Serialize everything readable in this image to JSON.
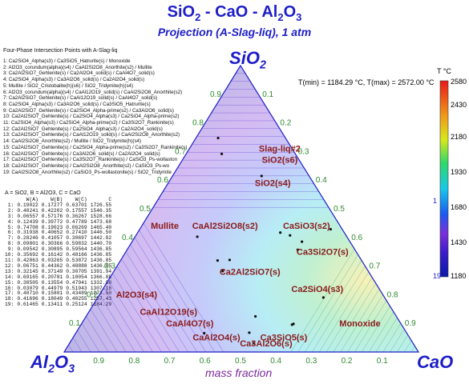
{
  "header": {
    "title": "SiO2 - CaO - Al2O3",
    "subtitle": "Projection (A-Slag-liq), 1 atm"
  },
  "corners": {
    "top": "SiO2",
    "left": "Al2O3",
    "right": "CaO"
  },
  "temperature_range": "T(min) = 1184.29 °C, T(max) = 2572.00 °C",
  "colorbar": {
    "title": "T °C",
    "ticks": [
      "2580",
      "2430",
      "2180",
      "1930",
      "1680",
      "1430",
      "1180"
    ],
    "marks": [
      "1",
      "19"
    ]
  },
  "xlabel": "mass fraction",
  "points_panel": {
    "title": "Four-Phase Intersection Points with A-Slag-liq",
    "items": [
      "1:  Ca2SiO4_Alpha(s3) / Ca3SiO5_Hatrurite(s) / Monoxide",
      "2:  Al2O3_corundum(alpha)(s4) / CaAl2Si2O8_Anorthite(s2) / Mullite",
      "3:  Ca2Al2SiO7_Gehlenite(s) / Ca2Al2O4_solid(s) / CaAl4O7_solid(s)",
      "4:  Ca2SiO4_Alpha(s3) / Ca3Al2O6_solid(s) / Ca2Al2O4_solid(s)",
      "5:  Mullite / SiO2_Cristobalite(h)(s6) / SiO2_Tridymite(h)(s4)",
      "6:  Al2O3_corundum(alpha)(s4) / CaAl12O19_solid(s) / CaAl2Si2O8_Anorthite(s2)",
      "7:  Ca2Al2SiO7_Gehlenite(s) / CaAl12O19_solid(s) / CaAl4O7_solid(s)",
      "8:  Ca2SiO4_Alpha(s3) / Ca3Al2O6_solid(s) / Ca3SiO5_Hatrurite(s)",
      "9:  Ca2Al2SiO7_Gehlenite(s) / Ca2SiO4_Alpha-prime(s2) / Ca3Al2O6_solid(s)",
      "10: Ca2Al2SiO7_Gehlenite(s) / Ca2SiO4_Alpha(s3) / Ca2SiO4_Alpha-prime(s2)",
      "11: Ca2SiO4_Alpha(s3) / Ca2SiO4_Alpha-prime(s2) / Ca3Si2O7_Rankinite(s)",
      "12: Ca2Al2SiO7_Gehlenite(s) / Ca2SiO4_Alpha(s3) / Ca2Al2O4_solid(s)",
      "13: Ca2Al2SiO7_Gehlenite(s) / CaAl12O19_solid(s) / CaAl2Si2O8_Anorthite(s2)",
      "14: CaAl2Si2O8_Anorthite(s2) / Mullite / SiO2_Tridymite(h)(s4)",
      "15: Ca2Al2SiO7_Gehlenite(s) / Ca2SiO4_Alpha-prime(s2) / Ca3Si2O7_Rankinite(s)",
      "16: Ca2Al2SiO7_Gehlenite(s) / Ca3Al2O6_solid(s) / Ca2Al2O4_solid(s)",
      "17: Ca2Al2SiO7_Gehlenite(s) / Ca3Si2O7_Rankinite(s) / CaSiO3_Ps-wollaston",
      "18: Ca2Al2SiO7_Gehlenite(s) / CaAl2Si2O8_Anorthite(s2) / CaSiO3_Ps-wo",
      "19: CaAl2Si2O8_Anorthite(s2) / CaSiO3_Ps-wollastonite(s) / SiO2_Tridymite"
    ]
  },
  "composition_table": {
    "legend": "A = SiO2, B = Al2O3, C = CaO",
    "columns": [
      "",
      "W(A)",
      "W(B)",
      "W(C)",
      "C"
    ],
    "rows": [
      [
        "1:",
        "0.19022",
        "0.17277",
        "0.63701",
        "1726.55"
      ],
      [
        "2:",
        "0.40241",
        "0.42202",
        "0.17557",
        "1546.35"
      ],
      [
        "3:",
        "0.06557",
        "0.57176",
        "0.36267",
        "1528.66"
      ],
      [
        "4:",
        "0.12439",
        "0.39772",
        "0.47789",
        "1473.68"
      ],
      [
        "5:",
        "0.74708",
        "0.19023",
        "0.06269",
        "1465.40"
      ],
      [
        "6:",
        "0.31938",
        "0.40652",
        "0.27410",
        "1446.50"
      ],
      [
        "7:",
        "0.28246",
        "0.41057",
        "0.30697",
        "1442.82"
      ],
      [
        "8:",
        "0.09801",
        "0.30366",
        "0.59832",
        "1440.70"
      ],
      [
        "9:",
        "0.09542",
        "0.30895",
        "0.59564",
        "1436.85"
      ],
      [
        "10:",
        "0.35692",
        "0.16142",
        "0.48166",
        "1436.85"
      ],
      [
        "11:",
        "0.42863",
        "0.03265",
        "0.53872",
        "1436.85"
      ],
      [
        "12:",
        "0.06751",
        "0.44362",
        "0.48888",
        "1436.85"
      ],
      [
        "13:",
        "0.32145",
        "0.37149",
        "0.30705",
        "1391.94"
      ],
      [
        "14:",
        "0.69165",
        "0.20781",
        "0.10054",
        "1366.88"
      ],
      [
        "15:",
        "0.38505",
        "0.13554",
        "0.47941",
        "1332.88"
      ],
      [
        "16:",
        "0.03079",
        "0.44979",
        "0.51943",
        "1307.16"
      ],
      [
        "17:",
        "0.40710",
        "0.15801",
        "0.43489",
        "1273.50"
      ],
      [
        "18:",
        "0.41696",
        "0.18049",
        "0.40255",
        "1257.43"
      ],
      [
        "19:",
        "0.61465",
        "0.13411",
        "0.25124",
        "1184.29"
      ]
    ]
  },
  "chart_data": {
    "type": "ternary phase diagram",
    "components": {
      "top": "SiO2",
      "left": "Al2O3",
      "right": "CaO"
    },
    "ticks": [
      "0.1",
      "0.2",
      "0.3",
      "0.4",
      "0.5",
      "0.6",
      "0.7",
      "0.8",
      "0.9"
    ],
    "axis_ticks_bottom": [
      "0.9",
      "0.8",
      "0.7",
      "0.6",
      "0.5",
      "0.4",
      "0.3",
      "0.2",
      "0.1"
    ],
    "temperature_range_C": [
      1184.29,
      2572.0
    ],
    "colorbar_C": [
      1180,
      1430,
      1680,
      1930,
      2180,
      2430,
      2580
    ],
    "phase_fields": [
      {
        "label": "Slag-liq#2",
        "color": "#8b1a1a",
        "sio2": 0.7,
        "al2o3": 0.04,
        "cao": 0.26
      },
      {
        "label": "SiO2(s6)",
        "color": "#8b1a1a",
        "sio2": 0.66,
        "al2o3": 0.06,
        "cao": 0.28
      },
      {
        "label": "SiO2(s4)",
        "color": "#8b1a1a",
        "sio2": 0.58,
        "al2o3": 0.12,
        "cao": 0.3
      },
      {
        "label": "Mullite",
        "color": "#8b1a1a",
        "sio2": 0.43,
        "al2o3": 0.5,
        "cao": 0.07
      },
      {
        "label": "CaAl2Si2O8(s2)",
        "color": "#8b1a1a",
        "sio2": 0.43,
        "al2o3": 0.33,
        "cao": 0.24
      },
      {
        "label": "CaSiO3(s2)",
        "color": "#8b1a1a",
        "sio2": 0.43,
        "al2o3": 0.1,
        "cao": 0.47
      },
      {
        "label": "Ca3Si2O7(s)",
        "color": "#8b1a1a",
        "sio2": 0.34,
        "al2o3": 0.1,
        "cao": 0.56
      },
      {
        "label": "Ca2Al2SiO7(s)",
        "color": "#8b1a1a",
        "sio2": 0.27,
        "al2o3": 0.34,
        "cao": 0.39
      },
      {
        "label": "Ca2SiO4(s3)",
        "color": "#8b1a1a",
        "sio2": 0.21,
        "al2o3": 0.18,
        "cao": 0.61
      },
      {
        "label": "Al2O3(s4)",
        "color": "#8b1a1a",
        "sio2": 0.19,
        "al2o3": 0.7,
        "cao": 0.11
      },
      {
        "label": "CaAl12O19(s)",
        "color": "#8b1a1a",
        "sio2": 0.13,
        "al2o3": 0.64,
        "cao": 0.23
      },
      {
        "label": "CaAl4O7(s)",
        "color": "#8b1a1a",
        "sio2": 0.09,
        "al2o3": 0.6,
        "cao": 0.31
      },
      {
        "label": "CaAl2O4(s)",
        "color": "#8b1a1a",
        "sio2": 0.04,
        "al2o3": 0.55,
        "cao": 0.41
      },
      {
        "label": "Ca3SiO5(s)",
        "color": "#8b1a1a",
        "sio2": 0.04,
        "al2o3": 0.36,
        "cao": 0.6
      },
      {
        "label": "Ca3Al2O6(s)",
        "color": "#8b1a1a",
        "sio2": 0.02,
        "al2o3": 0.42,
        "cao": 0.56
      },
      {
        "label": "Monoxide",
        "color": "#8b1a1a",
        "sio2": 0.09,
        "al2o3": 0.12,
        "cao": 0.79
      }
    ],
    "colors": {
      "title": "#1d1dc8",
      "phase_label": "#8b1a1a",
      "tick": "#2e8b2e",
      "axis": "#1d1dc8"
    }
  }
}
